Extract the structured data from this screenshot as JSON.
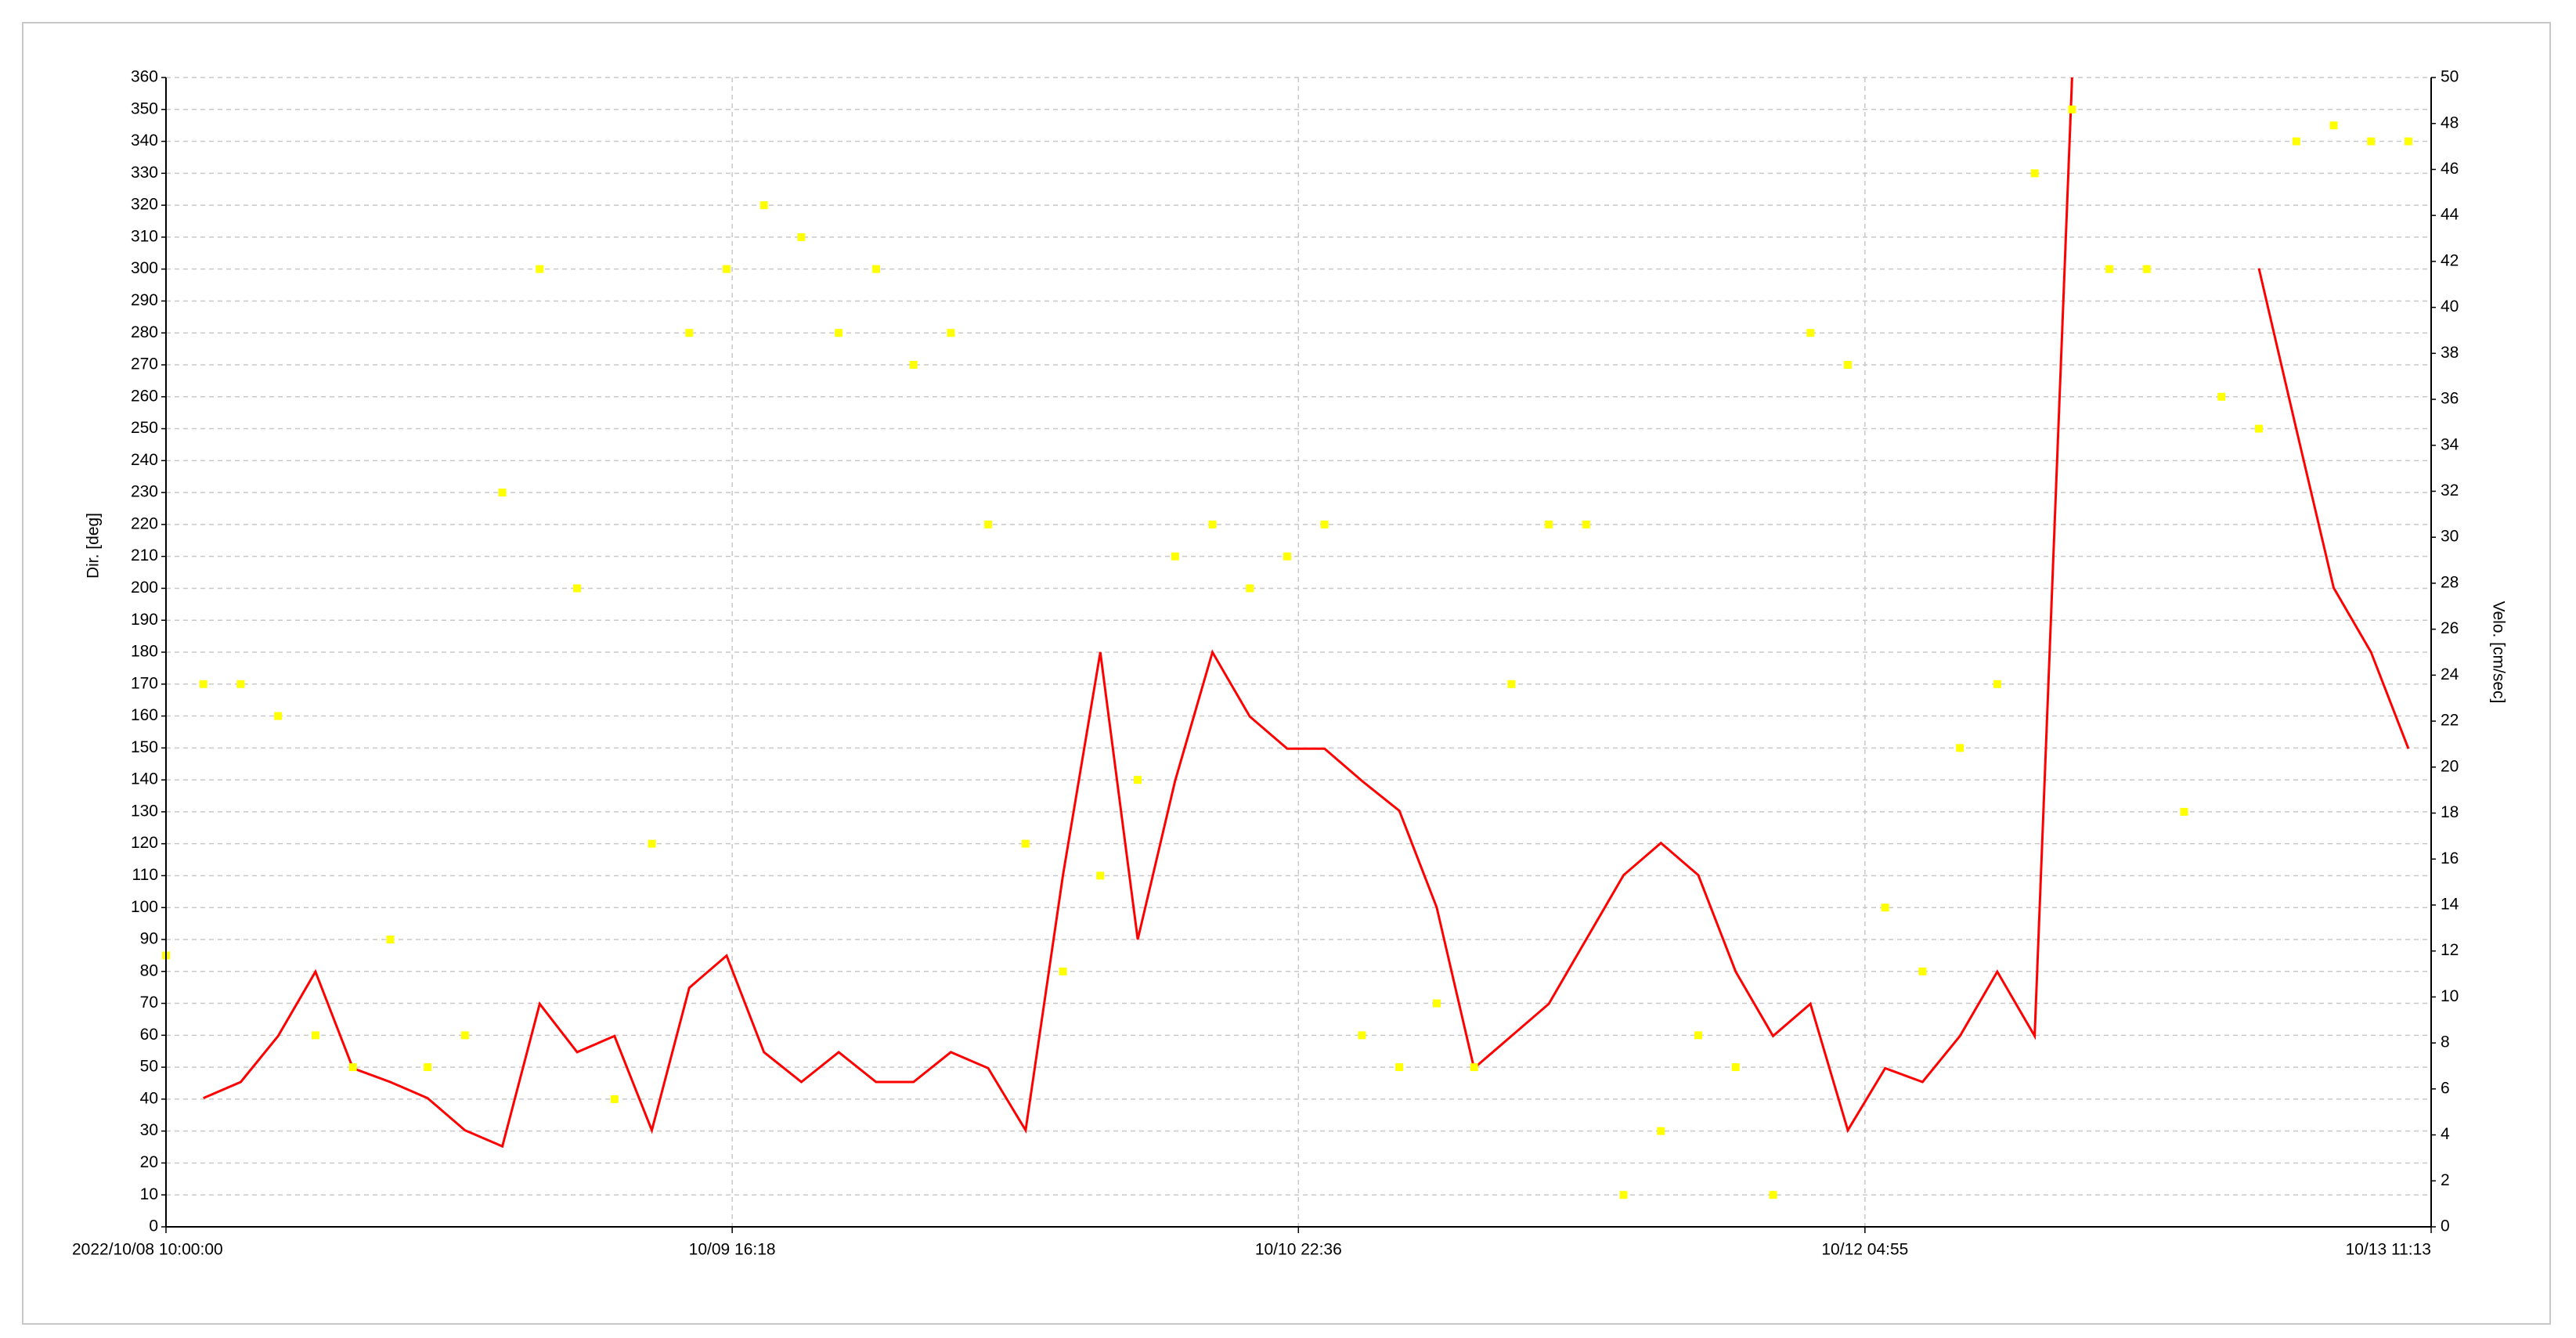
{
  "chart_data": {
    "type": "line",
    "ylabel": "Dir. [deg]",
    "y2label": "Velo. [cm/sec]",
    "x": [
      "2022-10-08T10:00",
      "2022-10-08T12:00",
      "2022-10-08T14:00",
      "2022-10-08T16:00",
      "2022-10-08T18:00",
      "2022-10-08T20:00",
      "2022-10-08T22:00",
      "2022-10-09T00:00",
      "2022-10-09T02:00",
      "2022-10-09T04:00",
      "2022-10-09T06:00",
      "2022-10-09T08:00",
      "2022-10-09T10:00",
      "2022-10-09T12:00",
      "2022-10-09T14:00",
      "2022-10-09T16:00",
      "2022-10-09T18:00",
      "2022-10-09T20:00",
      "2022-10-09T22:00",
      "2022-10-10T00:00",
      "2022-10-10T02:00",
      "2022-10-10T04:00",
      "2022-10-10T06:00",
      "2022-10-10T08:00",
      "2022-10-10T10:00",
      "2022-10-10T12:00",
      "2022-10-10T14:00",
      "2022-10-10T16:00",
      "2022-10-10T18:00",
      "2022-10-10T20:00",
      "2022-10-10T22:00",
      "2022-10-11T00:00",
      "2022-10-11T02:00",
      "2022-10-11T04:00",
      "2022-10-11T06:00",
      "2022-10-11T08:00",
      "2022-10-11T10:00",
      "2022-10-11T12:00",
      "2022-10-11T14:00",
      "2022-10-11T16:00",
      "2022-10-11T18:00",
      "2022-10-11T20:00",
      "2022-10-11T22:00",
      "2022-10-12T00:00",
      "2022-10-12T02:00",
      "2022-10-12T04:00",
      "2022-10-12T06:00",
      "2022-10-12T08:00",
      "2022-10-12T10:00",
      "2022-10-12T12:00",
      "2022-10-12T14:00",
      "2022-10-12T16:00",
      "2022-10-12T18:00",
      "2022-10-12T20:00",
      "2022-10-12T22:00",
      "2022-10-13T00:00",
      "2022-10-13T02:00",
      "2022-10-13T04:00",
      "2022-10-13T06:00",
      "2022-10-13T08:00",
      "2022-10-13T10:00"
    ],
    "series": [
      {
        "name": "Velo.",
        "type": "line",
        "axis": "y2",
        "color": "#ff0000",
        "values": [
          null,
          5.6,
          6.3,
          8.3,
          11.1,
          6.9,
          6.3,
          5.6,
          4.2,
          3.5,
          9.7,
          7.6,
          8.3,
          4.2,
          10.4,
          11.8,
          7.6,
          6.3,
          7.6,
          6.3,
          6.3,
          7.6,
          6.9,
          4.2,
          15.3,
          25,
          12.5,
          19.4,
          25,
          22.2,
          20.8,
          20.8,
          19.4,
          18.1,
          13.9,
          6.9,
          8.3,
          9.7,
          12.5,
          15.3,
          16.7,
          15.3,
          11.1,
          8.3,
          9.7,
          4.2,
          6.9,
          6.3,
          8.3,
          11.1,
          8.3,
          50,
          null,
          null,
          null,
          null,
          41.7,
          34.7,
          27.8,
          25,
          20.8
        ]
      },
      {
        "name": "Dir.",
        "type": "scatter",
        "color": "#ffff00",
        "values": [
          85,
          170,
          170,
          160,
          60,
          50,
          90,
          50,
          60,
          230,
          300,
          200,
          40,
          120,
          280,
          300,
          320,
          310,
          280,
          300,
          270,
          280,
          220,
          120,
          80,
          110,
          140,
          210,
          220,
          200,
          210,
          220,
          60,
          50,
          70,
          50,
          170,
          220,
          220,
          10,
          30,
          60,
          50,
          10,
          280,
          270,
          100,
          80,
          150,
          170,
          330,
          350,
          300,
          300,
          130,
          260,
          250,
          340,
          345,
          340,
          340
        ]
      }
    ],
    "xlim": [
      "2022-10-08T10:00",
      "2022-10-13T11:13"
    ],
    "xticks": [
      {
        "value": "2022-10-08T10:00",
        "label": "2022/10/08 10:00:00"
      },
      {
        "value": "2022-10-09T16:18",
        "label": "10/09 16:18"
      },
      {
        "value": "2022-10-10T22:36",
        "label": "10/10 22:36"
      },
      {
        "value": "2022-10-12T04:55",
        "label": "10/12 04:55"
      },
      {
        "value": "2022-10-13T11:13",
        "label": "10/13 11:13"
      }
    ],
    "ylim": [
      0,
      360
    ],
    "yticks": [
      0,
      10,
      20,
      30,
      40,
      50,
      60,
      70,
      80,
      90,
      100,
      110,
      120,
      130,
      140,
      150,
      160,
      170,
      180,
      190,
      200,
      210,
      220,
      230,
      240,
      250,
      260,
      270,
      280,
      290,
      300,
      310,
      320,
      330,
      340,
      350,
      360
    ],
    "y2lim": [
      0,
      50
    ],
    "y2ticks": [
      0,
      2,
      4,
      6,
      8,
      10,
      12,
      14,
      16,
      18,
      20,
      22,
      24,
      26,
      28,
      30,
      32,
      34,
      36,
      38,
      40,
      42,
      44,
      46,
      48,
      50
    ],
    "grid": true
  }
}
